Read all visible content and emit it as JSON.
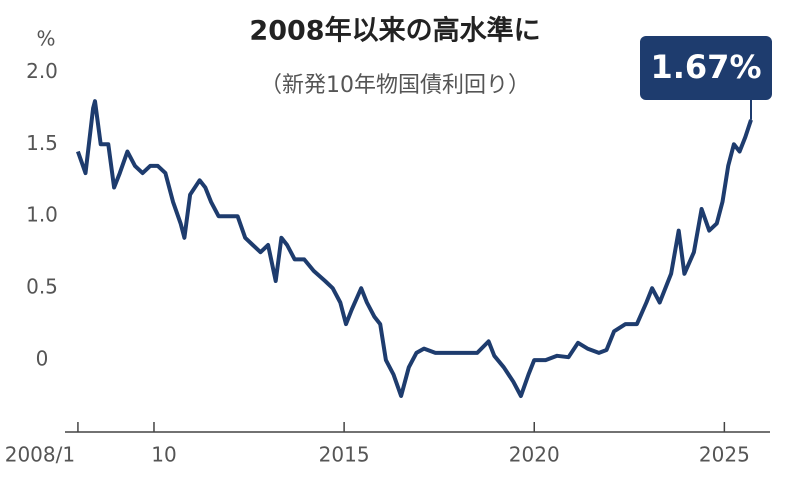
{
  "chart_data": {
    "type": "line",
    "title": "2008年以来の高水準に",
    "subtitle": "（新発10年物国債利回り）",
    "y_unit": "%",
    "color": "#1e3c6e",
    "x": [
      2008.0,
      2008.2,
      2008.4,
      2008.45,
      2008.6,
      2008.8,
      2008.95,
      2009.1,
      2009.3,
      2009.5,
      2009.7,
      2009.9,
      2010.1,
      2010.3,
      2010.5,
      2010.7,
      2010.8,
      2010.95,
      2011.2,
      2011.35,
      2011.5,
      2011.7,
      2011.9,
      2012.2,
      2012.4,
      2012.6,
      2012.8,
      2013.0,
      2013.2,
      2013.35,
      2013.5,
      2013.7,
      2013.95,
      2014.2,
      2014.5,
      2014.7,
      2014.9,
      2015.05,
      2015.2,
      2015.45,
      2015.6,
      2015.8,
      2015.95,
      2016.1,
      2016.3,
      2016.5,
      2016.7,
      2016.9,
      2017.1,
      2017.4,
      2017.7,
      2017.9,
      2018.2,
      2018.5,
      2018.8,
      2018.95,
      2019.2,
      2019.45,
      2019.65,
      2019.85,
      2020.0,
      2020.3,
      2020.6,
      2020.9,
      2021.15,
      2021.4,
      2021.7,
      2021.9,
      2022.1,
      2022.4,
      2022.7,
      2022.95,
      2023.1,
      2023.3,
      2023.6,
      2023.8,
      2023.95,
      2024.2,
      2024.4,
      2024.6,
      2024.8,
      2024.95,
      2025.1,
      2025.25,
      2025.4,
      2025.55,
      2025.7
    ],
    "values": [
      1.45,
      1.3,
      1.75,
      1.8,
      1.5,
      1.5,
      1.2,
      1.3,
      1.45,
      1.35,
      1.3,
      1.35,
      1.35,
      1.3,
      1.1,
      0.95,
      0.85,
      1.15,
      1.25,
      1.2,
      1.1,
      1.0,
      1.0,
      1.0,
      0.85,
      0.8,
      0.75,
      0.8,
      0.55,
      0.85,
      0.8,
      0.7,
      0.7,
      0.62,
      0.55,
      0.5,
      0.4,
      0.25,
      0.35,
      0.5,
      0.4,
      0.3,
      0.25,
      0.0,
      -0.1,
      -0.25,
      -0.05,
      0.05,
      0.08,
      0.05,
      0.05,
      0.05,
      0.05,
      0.05,
      0.13,
      0.03,
      -0.05,
      -0.15,
      -0.25,
      -0.1,
      0.0,
      0.0,
      0.03,
      0.02,
      0.12,
      0.08,
      0.05,
      0.07,
      0.2,
      0.25,
      0.25,
      0.4,
      0.5,
      0.4,
      0.6,
      0.9,
      0.6,
      0.75,
      1.05,
      0.9,
      0.95,
      1.1,
      1.35,
      1.5,
      1.45,
      1.55,
      1.67
    ],
    "value_labels": [
      null,
      null,
      null,
      null,
      null,
      null,
      null,
      null,
      null,
      null,
      null,
      null,
      null,
      null,
      null,
      null,
      null,
      null,
      null,
      null,
      null,
      null,
      null,
      null,
      null,
      null,
      null,
      null,
      null,
      null,
      null,
      null,
      null,
      null,
      null,
      null,
      null,
      null,
      null,
      null,
      null,
      null,
      null,
      null,
      null,
      null,
      null,
      null,
      null,
      null,
      null,
      null,
      null,
      null,
      null,
      null,
      null,
      null,
      null,
      null,
      null,
      null,
      null,
      null,
      null,
      null,
      null,
      null,
      null,
      null,
      null,
      null,
      null,
      null,
      null,
      null,
      null,
      null,
      null,
      null,
      null,
      null,
      null,
      null,
      null,
      null,
      "1.67%"
    ],
    "xlim": [
      2007.66,
      2026.2
    ],
    "xticks": [
      {
        "value": 2008,
        "label": "2008/1"
      },
      {
        "value": 2010,
        "label": "10"
      },
      2015,
      2020,
      2025
    ],
    "ylim": [
      -0.5,
      2.1
    ],
    "yticks": [
      {
        "value": 2,
        "label": "2.0"
      },
      1.5,
      {
        "value": 1,
        "label": "1.0"
      },
      0.5,
      0
    ]
  }
}
